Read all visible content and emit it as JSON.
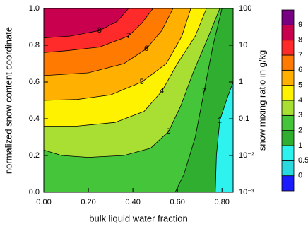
{
  "chart_data": {
    "type": "contour",
    "xlabel": "bulk liquid water fraction",
    "ylabel": "normalized snow content coordinate",
    "y2label": "snow mixing ratio in g/kg",
    "xlim": [
      0,
      0.85
    ],
    "xticks": [
      {
        "value": 0,
        "label": "0.00"
      },
      {
        "value": 0.2,
        "label": "0.20"
      },
      {
        "value": 0.4,
        "label": "0.40"
      },
      {
        "value": 0.6,
        "label": "0.60"
      },
      {
        "value": 0.8,
        "label": "0.80"
      }
    ],
    "ylim": [
      0,
      1
    ],
    "yticks": [
      {
        "value": 0,
        "label": "0.0"
      },
      {
        "value": 0.2,
        "label": "0.2"
      },
      {
        "value": 0.4,
        "label": "0.4"
      },
      {
        "value": 0.6,
        "label": "0.6"
      },
      {
        "value": 0.8,
        "label": "0.8"
      },
      {
        "value": 1,
        "label": "1.0"
      }
    ],
    "y2lim": [
      0.001,
      100
    ],
    "y2scale": "log",
    "y2ticks": [
      {
        "value": 0.001,
        "label": "10⁻³"
      },
      {
        "value": 0.01,
        "label": "10⁻²"
      },
      0.1,
      1,
      10,
      100
    ],
    "levels": [
      0,
      0.5,
      1,
      2,
      3,
      4,
      5,
      6,
      7,
      8,
      9
    ],
    "colors": [
      "#1b1bff",
      "#2ad8e0",
      "#2ef2ee",
      "#2fae2f",
      "#45c63a",
      "#a9de33",
      "#fff200",
      "#ffb000",
      "#ff7a00",
      "#ff2a2a",
      "#c8004e",
      "#780082"
    ],
    "contours": [
      {
        "level": 1,
        "x": [
          0.85,
          0.82,
          0.79,
          0.775,
          0.77
        ],
        "y": [
          0.6,
          0.5,
          0.39,
          0.2,
          0.0
        ]
      },
      {
        "level": 2,
        "x": [
          0.8,
          0.76,
          0.72,
          0.68,
          0.63,
          0.59
        ],
        "y": [
          1.0,
          0.8,
          0.55,
          0.3,
          0.1,
          0.0
        ]
      },
      {
        "level": 3,
        "x": [
          0.79,
          0.74,
          0.67,
          0.615,
          0.56,
          0.48,
          0.36,
          0.2,
          0.08,
          0
        ],
        "y": [
          1.0,
          0.85,
          0.65,
          0.47,
          0.33,
          0.24,
          0.2,
          0.19,
          0.2,
          0.23
        ]
      },
      {
        "level": 4,
        "x": [
          0.73,
          0.68,
          0.6,
          0.53,
          0.45,
          0.32,
          0.15,
          0
        ],
        "y": [
          1.0,
          0.85,
          0.7,
          0.55,
          0.44,
          0.38,
          0.36,
          0.36
        ]
      },
      {
        "level": 5,
        "x": [
          0.66,
          0.62,
          0.55,
          0.44,
          0.3,
          0.15,
          0
        ],
        "y": [
          1.0,
          0.85,
          0.7,
          0.6,
          0.53,
          0.505,
          0.5
        ]
      },
      {
        "level": 6,
        "x": [
          0.58,
          0.53,
          0.46,
          0.36,
          0.2,
          0
        ],
        "y": [
          1.0,
          0.88,
          0.78,
          0.7,
          0.65,
          0.635
        ]
      },
      {
        "level": 7,
        "x": [
          0.49,
          0.44,
          0.38,
          0.25,
          0.1,
          0
        ],
        "y": [
          1.0,
          0.92,
          0.85,
          0.79,
          0.77,
          0.76
        ]
      },
      {
        "level": 8,
        "x": [
          0.38,
          0.33,
          0.25,
          0.12,
          0
        ],
        "y": [
          1.0,
          0.93,
          0.88,
          0.85,
          0.84
        ]
      }
    ]
  }
}
